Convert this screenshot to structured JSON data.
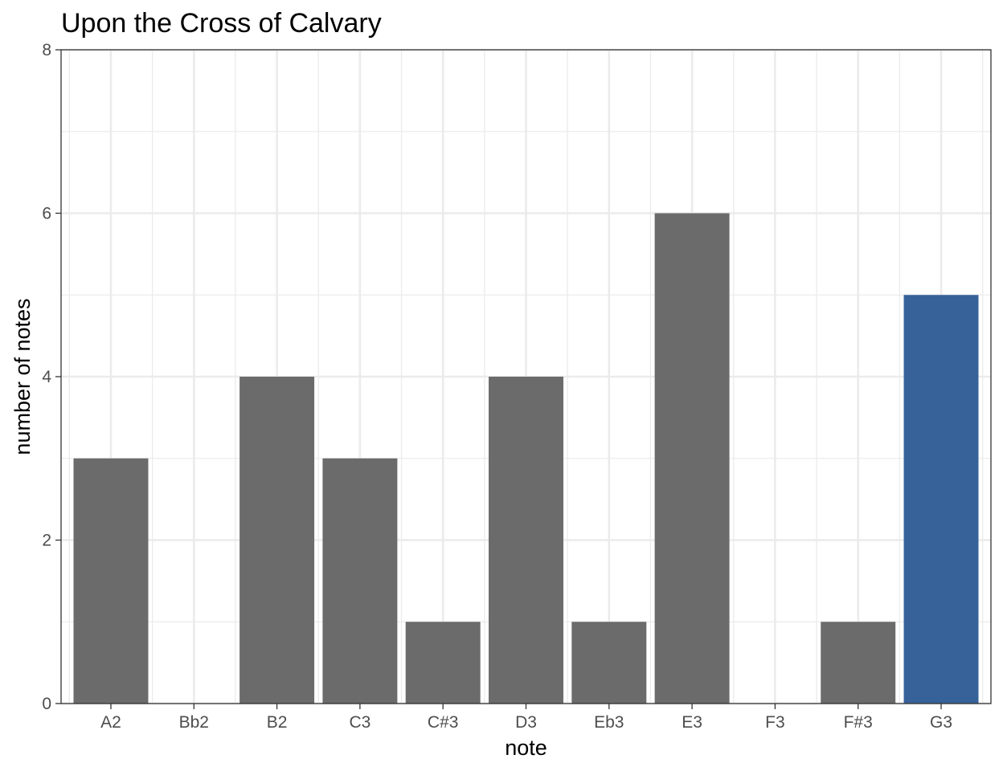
{
  "chart_data": {
    "type": "bar",
    "title": "Upon the Cross of Calvary",
    "xlabel": "note",
    "ylabel": "number of notes",
    "categories": [
      "A2",
      "Bb2",
      "B2",
      "C3",
      "C#3",
      "D3",
      "Eb3",
      "E3",
      "F3",
      "F#3",
      "G3"
    ],
    "values": [
      3,
      0,
      4,
      3,
      1,
      4,
      1,
      6,
      0,
      1,
      5
    ],
    "highlight_category": "G3",
    "bar_color": "#6b6b6b",
    "highlight_color": "#376299",
    "ylim": [
      0,
      8
    ],
    "yticks": [
      0,
      2,
      4,
      6,
      8
    ],
    "grid": true,
    "legend": "none"
  }
}
